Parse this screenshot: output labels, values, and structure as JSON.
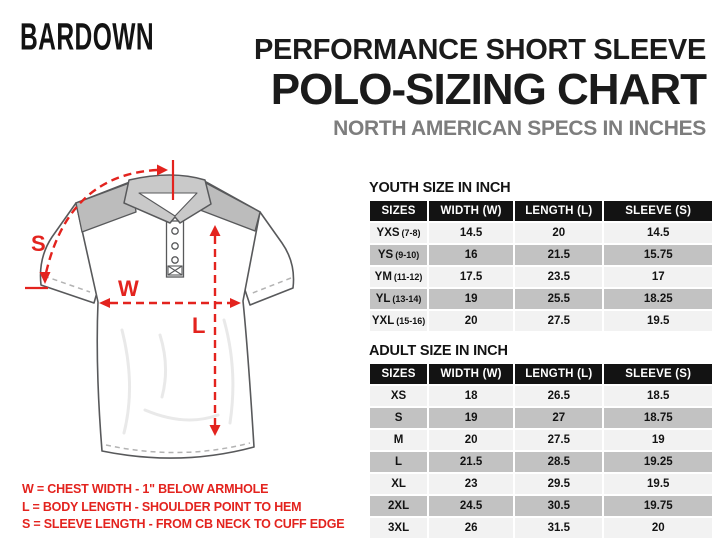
{
  "brand": {
    "logo": "BARDOWN"
  },
  "header": {
    "title_line1": "PERFORMANCE SHORT SLEEVE",
    "title_line2": "POLO-SIZING CHART",
    "subtitle": "NORTH AMERICAN SPECS IN INCHES"
  },
  "diagram": {
    "s_label": "S",
    "w_label": "W",
    "l_label": "L"
  },
  "youth_table": {
    "title": "YOUTH SIZE IN INCH",
    "headers": [
      "SIZES",
      "WIDTH (W)",
      "LENGTH (L)",
      "SLEEVE (S)"
    ],
    "rows": [
      {
        "size": "YXS",
        "age": "(7-8)",
        "width": "14.5",
        "length": "20",
        "sleeve": "14.5"
      },
      {
        "size": "YS",
        "age": "(9-10)",
        "width": "16",
        "length": "21.5",
        "sleeve": "15.75"
      },
      {
        "size": "YM",
        "age": "(11-12)",
        "width": "17.5",
        "length": "23.5",
        "sleeve": "17"
      },
      {
        "size": "YL",
        "age": "(13-14)",
        "width": "19",
        "length": "25.5",
        "sleeve": "18.25"
      },
      {
        "size": "YXL",
        "age": "(15-16)",
        "width": "20",
        "length": "27.5",
        "sleeve": "19.5"
      }
    ]
  },
  "adult_table": {
    "title": "ADULT SIZE IN INCH",
    "headers": [
      "SIZES",
      "WIDTH (W)",
      "LENGTH (L)",
      "SLEEVE (S)"
    ],
    "rows": [
      {
        "size": "XS",
        "age": "",
        "width": "18",
        "length": "26.5",
        "sleeve": "18.5"
      },
      {
        "size": "S",
        "age": "",
        "width": "19",
        "length": "27",
        "sleeve": "18.75"
      },
      {
        "size": "M",
        "age": "",
        "width": "20",
        "length": "27.5",
        "sleeve": "19"
      },
      {
        "size": "L",
        "age": "",
        "width": "21.5",
        "length": "28.5",
        "sleeve": "19.25"
      },
      {
        "size": "XL",
        "age": "",
        "width": "23",
        "length": "29.5",
        "sleeve": "19.5"
      },
      {
        "size": "2XL",
        "age": "",
        "width": "24.5",
        "length": "30.5",
        "sleeve": "19.75"
      },
      {
        "size": "3XL",
        "age": "",
        "width": "26",
        "length": "31.5",
        "sleeve": "20"
      }
    ]
  },
  "legend": {
    "lines": [
      "W = CHEST WIDTH - 1\" BELOW ARMHOLE",
      "L = BODY LENGTH - SHOULDER POINT TO HEM",
      "S = SLEEVE LENGTH - FROM CB NECK TO CUFF EDGE"
    ]
  },
  "colors": {
    "accent_red": "#e3231e",
    "table_header_bg": "#131313",
    "row_light": "#f2f2f2",
    "row_gray": "#c2c2c2",
    "subtitle_gray": "#7d7d7d"
  }
}
